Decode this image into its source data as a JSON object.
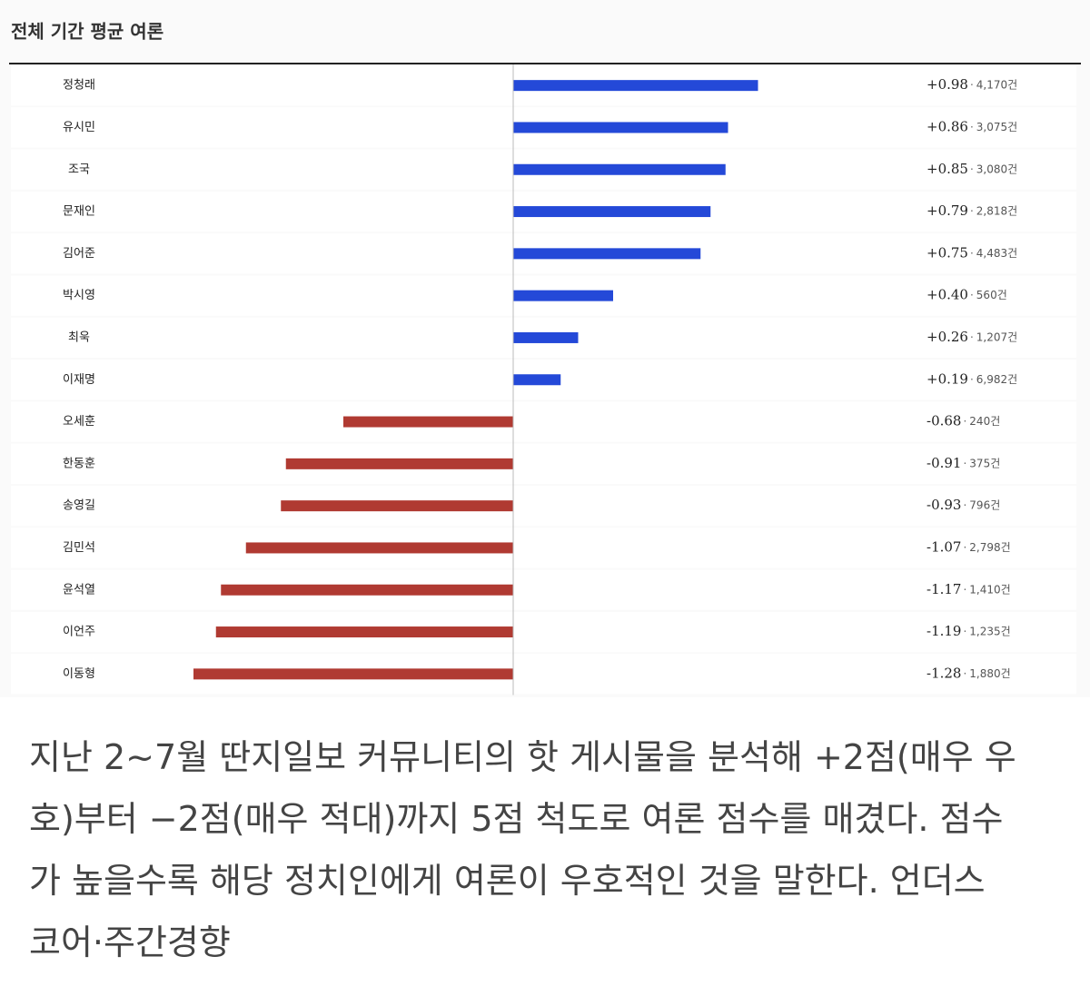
{
  "chart_data": {
    "type": "bar",
    "orientation": "horizontal",
    "title": "전체 기간 평균 여론",
    "categories": [
      "정청래",
      "유시민",
      "조국",
      "문재인",
      "김어준",
      "박시영",
      "최욱",
      "이재명",
      "오세훈",
      "한동훈",
      "송영길",
      "김민석",
      "윤석열",
      "이언주",
      "이동형"
    ],
    "values": [
      0.98,
      0.86,
      0.85,
      0.79,
      0.75,
      0.4,
      0.26,
      0.19,
      -0.68,
      -0.91,
      -0.93,
      -1.07,
      -1.17,
      -1.19,
      -1.28
    ],
    "value_labels": [
      "+0.98",
      "+0.86",
      "+0.85",
      "+0.79",
      "+0.75",
      "+0.40",
      "+0.26",
      "+0.19",
      "-0.68",
      "-0.91",
      "-0.93",
      "-1.07",
      "-1.17",
      "-1.19",
      "-1.28"
    ],
    "separator": "·",
    "counts": [
      4170,
      3075,
      3080,
      2818,
      4483,
      560,
      1207,
      6982,
      240,
      375,
      796,
      2798,
      1410,
      1235,
      1880
    ],
    "count_labels": [
      "4,170건",
      "3,075건",
      "3,080건",
      "2,818건",
      "4,483건",
      "560건",
      "1,207건",
      "6,982건",
      "240건",
      "375건",
      "796건",
      "2,798건",
      "1,410건",
      "1,235건",
      "1,880건"
    ],
    "color_positive": "#2449d8",
    "color_negative": "#b03a32"
  },
  "caption_lines": [
    "지난 2~7월 딴지일보 커뮤니티의 핫 게시물을 분석해 +2점(매우 우",
    "호)부터 −2점(매우 적대)까지 5점 척도로 여론 점수를 매겼다. 점수",
    "가 높을수록 해당 정치인에게 여론이 우호적인 것을 말한다. 언더스",
    "코어·주간경향"
  ]
}
